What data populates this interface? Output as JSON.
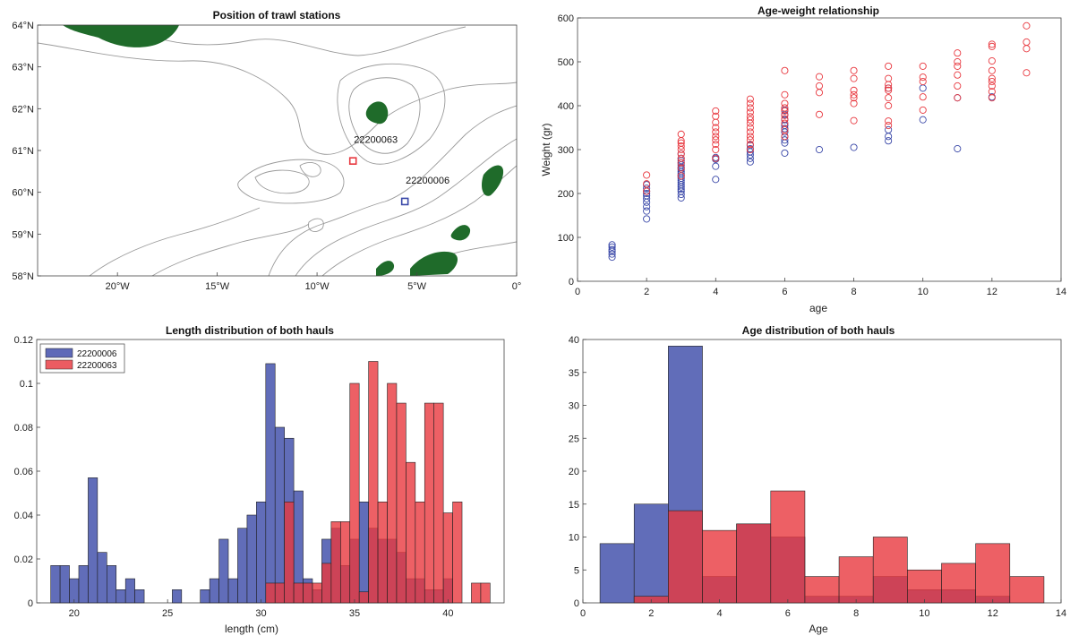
{
  "chart_data": [
    {
      "id": "map",
      "type": "map",
      "title": "Position of trawl stations",
      "x_ticks": [
        {
          "value": -20,
          "label": "20°W"
        },
        {
          "value": -15,
          "label": "15°W"
        },
        {
          "value": -10,
          "label": "10°W"
        },
        {
          "value": -5,
          "label": "5°W"
        },
        {
          "value": 0,
          "label": "0°"
        }
      ],
      "y_ticks": [
        {
          "value": 58,
          "label": "58°N"
        },
        {
          "value": 59,
          "label": "59°N"
        },
        {
          "value": 60,
          "label": "60°N"
        },
        {
          "value": 61,
          "label": "61°N"
        },
        {
          "value": 62,
          "label": "62°N"
        },
        {
          "value": 63,
          "label": "63°N"
        },
        {
          "value": 64,
          "label": "64°N"
        }
      ],
      "xlim": [
        -24,
        0
      ],
      "ylim": [
        58,
        64
      ],
      "stations": [
        {
          "id": "22200063",
          "lon": -8.2,
          "lat": 60.75,
          "color": "#e8383f"
        },
        {
          "id": "22200006",
          "lon": -5.6,
          "lat": 59.78,
          "color": "#3a48a8"
        }
      ],
      "land_color": "#1f6b2a"
    },
    {
      "id": "scatter",
      "type": "scatter",
      "title": "Age-weight relationship",
      "xlabel": "age",
      "ylabel": "Weight (gr)",
      "xlim": [
        0,
        14
      ],
      "ylim": [
        0,
        600
      ],
      "x_ticks": [
        0,
        2,
        4,
        6,
        8,
        10,
        12,
        14
      ],
      "y_ticks": [
        0,
        100,
        200,
        300,
        400,
        500,
        600
      ],
      "series": [
        {
          "color": "#3a48a8",
          "points": [
            [
              1,
              55
            ],
            [
              1,
              62
            ],
            [
              1,
              68
            ],
            [
              1,
              72
            ],
            [
              1,
              78
            ],
            [
              1,
              83
            ],
            [
              2,
              142
            ],
            [
              2,
              160
            ],
            [
              2,
              170
            ],
            [
              2,
              180
            ],
            [
              2,
              188
            ],
            [
              2,
              195
            ],
            [
              2,
              200
            ],
            [
              2,
              205
            ],
            [
              2,
              212
            ],
            [
              2,
              220
            ],
            [
              3,
              190
            ],
            [
              3,
              198
            ],
            [
              3,
              205
            ],
            [
              3,
              210
            ],
            [
              3,
              215
            ],
            [
              3,
              220
            ],
            [
              3,
              225
            ],
            [
              3,
              230
            ],
            [
              3,
              235
            ],
            [
              3,
              240
            ],
            [
              3,
              245
            ],
            [
              3,
              250
            ],
            [
              3,
              255
            ],
            [
              3,
              260
            ],
            [
              3,
              265
            ],
            [
              3,
              270
            ],
            [
              3,
              275
            ],
            [
              3,
              280
            ],
            [
              3,
              290
            ],
            [
              4,
              232
            ],
            [
              4,
              262
            ],
            [
              4,
              278
            ],
            [
              4,
              282
            ],
            [
              5,
              272
            ],
            [
              5,
              280
            ],
            [
              5,
              288
            ],
            [
              5,
              295
            ],
            [
              5,
              302
            ],
            [
              5,
              310
            ],
            [
              6,
              292
            ],
            [
              6,
              315
            ],
            [
              6,
              322
            ],
            [
              6,
              330
            ],
            [
              6,
              340
            ],
            [
              6,
              348
            ],
            [
              6,
              355
            ],
            [
              6,
              368
            ],
            [
              6,
              380
            ],
            [
              6,
              390
            ],
            [
              7,
              300
            ],
            [
              8,
              305
            ],
            [
              9,
              320
            ],
            [
              9,
              330
            ],
            [
              9,
              345
            ],
            [
              9,
              440
            ],
            [
              10,
              368
            ],
            [
              10,
              440
            ],
            [
              11,
              302
            ],
            [
              11,
              418
            ],
            [
              12,
              420
            ]
          ]
        },
        {
          "color": "#e8383f",
          "points": [
            [
              2,
              205
            ],
            [
              2,
              222
            ],
            [
              2,
              242
            ],
            [
              3,
              240
            ],
            [
              3,
              258
            ],
            [
              3,
              270
            ],
            [
              3,
              280
            ],
            [
              3,
              290
            ],
            [
              3,
              300
            ],
            [
              3,
              308
            ],
            [
              3,
              315
            ],
            [
              3,
              320
            ],
            [
              3,
              335
            ],
            [
              4,
              280
            ],
            [
              4,
              300
            ],
            [
              4,
              312
            ],
            [
              4,
              322
            ],
            [
              4,
              330
            ],
            [
              4,
              340
            ],
            [
              4,
              350
            ],
            [
              4,
              362
            ],
            [
              4,
              376
            ],
            [
              4,
              388
            ],
            [
              5,
              300
            ],
            [
              5,
              312
            ],
            [
              5,
              322
            ],
            [
              5,
              330
            ],
            [
              5,
              340
            ],
            [
              5,
              350
            ],
            [
              5,
              360
            ],
            [
              5,
              368
            ],
            [
              5,
              375
            ],
            [
              5,
              385
            ],
            [
              5,
              395
            ],
            [
              5,
              405
            ],
            [
              5,
              415
            ],
            [
              6,
              330
            ],
            [
              6,
              345
            ],
            [
              6,
              360
            ],
            [
              6,
              370
            ],
            [
              6,
              378
            ],
            [
              6,
              388
            ],
            [
              6,
              395
            ],
            [
              6,
              405
            ],
            [
              6,
              425
            ],
            [
              6,
              480
            ],
            [
              7,
              380
            ],
            [
              7,
              430
            ],
            [
              7,
              445
            ],
            [
              7,
              466
            ],
            [
              8,
              366
            ],
            [
              8,
              405
            ],
            [
              8,
              418
            ],
            [
              8,
              425
            ],
            [
              8,
              435
            ],
            [
              8,
              462
            ],
            [
              8,
              480
            ],
            [
              9,
              355
            ],
            [
              9,
              365
            ],
            [
              9,
              400
            ],
            [
              9,
              418
            ],
            [
              9,
              435
            ],
            [
              9,
              440
            ],
            [
              9,
              448
            ],
            [
              9,
              462
            ],
            [
              9,
              490
            ],
            [
              10,
              390
            ],
            [
              10,
              420
            ],
            [
              10,
              455
            ],
            [
              10,
              465
            ],
            [
              10,
              490
            ],
            [
              11,
              418
            ],
            [
              11,
              445
            ],
            [
              11,
              470
            ],
            [
              11,
              490
            ],
            [
              11,
              500
            ],
            [
              11,
              520
            ],
            [
              12,
              418
            ],
            [
              12,
              432
            ],
            [
              12,
              445
            ],
            [
              12,
              455
            ],
            [
              12,
              462
            ],
            [
              12,
              480
            ],
            [
              12,
              502
            ],
            [
              12,
              535
            ],
            [
              12,
              540
            ],
            [
              13,
              475
            ],
            [
              13,
              530
            ],
            [
              13,
              545
            ],
            [
              13,
              582
            ]
          ]
        }
      ]
    },
    {
      "id": "length-hist",
      "type": "bar",
      "title": "Length distribution of both hauls",
      "xlabel": "length (cm)",
      "ylabel": "",
      "xlim": [
        18,
        43
      ],
      "ylim": [
        0,
        0.12
      ],
      "x_ticks": [
        20,
        25,
        30,
        35,
        40
      ],
      "y_ticks": [
        0,
        0.02,
        0.04,
        0.06,
        0.08,
        0.1,
        0.12
      ],
      "bin_width": 0.5,
      "legend": [
        {
          "name": "22200006",
          "color": "#3a48a8"
        },
        {
          "name": "22200063",
          "color": "#e8383f"
        }
      ],
      "series": [
        {
          "name": "22200006",
          "color": "#3a48a8",
          "bins": [
            [
              19,
              0.017
            ],
            [
              19.5,
              0.017
            ],
            [
              20,
              0.011
            ],
            [
              20.5,
              0.017
            ],
            [
              21,
              0.057
            ],
            [
              21.5,
              0.023
            ],
            [
              22,
              0.017
            ],
            [
              22.5,
              0.006
            ],
            [
              23,
              0.011
            ],
            [
              23.5,
              0.006
            ],
            [
              25.5,
              0.006
            ],
            [
              27,
              0.006
            ],
            [
              27.5,
              0.011
            ],
            [
              28,
              0.029
            ],
            [
              28.5,
              0.011
            ],
            [
              29,
              0.034
            ],
            [
              29.5,
              0.04
            ],
            [
              30,
              0.046
            ],
            [
              30.5,
              0.109
            ],
            [
              31,
              0.08
            ],
            [
              31.5,
              0.075
            ],
            [
              32,
              0.051
            ],
            [
              32.5,
              0.011
            ],
            [
              33,
              0.006
            ],
            [
              33.5,
              0.029
            ],
            [
              34,
              0.034
            ],
            [
              34.5,
              0.017
            ],
            [
              35,
              0.029
            ],
            [
              35.5,
              0.046
            ],
            [
              36,
              0.034
            ],
            [
              36.5,
              0.029
            ],
            [
              37,
              0.029
            ],
            [
              37.5,
              0.023
            ],
            [
              38,
              0.011
            ],
            [
              38.5,
              0.011
            ],
            [
              39,
              0.006
            ],
            [
              39.5,
              0.006
            ],
            [
              40,
              0.011
            ]
          ]
        },
        {
          "name": "22200063",
          "color": "#e8383f",
          "bins": [
            [
              30.5,
              0.009
            ],
            [
              31,
              0.009
            ],
            [
              31.5,
              0.046
            ],
            [
              32,
              0.009
            ],
            [
              32.5,
              0.009
            ],
            [
              33,
              0.009
            ],
            [
              33.5,
              0.018
            ],
            [
              34,
              0.037
            ],
            [
              34.5,
              0.037
            ],
            [
              35,
              0.1
            ],
            [
              35.5,
              0.005
            ],
            [
              36,
              0.11
            ],
            [
              36.5,
              0.046
            ],
            [
              37,
              0.1
            ],
            [
              37.5,
              0.091
            ],
            [
              38,
              0.064
            ],
            [
              38.5,
              0.046
            ],
            [
              39,
              0.091
            ],
            [
              39.5,
              0.091
            ],
            [
              40,
              0.041
            ],
            [
              40.5,
              0.046
            ],
            [
              41.5,
              0.009
            ],
            [
              42,
              0.009
            ]
          ]
        }
      ]
    },
    {
      "id": "age-hist",
      "type": "bar",
      "title": "Age distribution of both hauls",
      "xlabel": "Age",
      "ylabel": "",
      "xlim": [
        0,
        14
      ],
      "ylim": [
        0,
        40
      ],
      "x_ticks": [
        0,
        2,
        4,
        6,
        8,
        10,
        12,
        14
      ],
      "y_ticks": [
        0,
        5,
        10,
        15,
        20,
        25,
        30,
        35,
        40
      ],
      "bin_width": 1,
      "series": [
        {
          "name": "22200006",
          "color": "#3a48a8",
          "bins": [
            [
              1,
              9
            ],
            [
              2,
              15
            ],
            [
              3,
              39
            ],
            [
              4,
              4
            ],
            [
              5,
              12
            ],
            [
              6,
              10
            ],
            [
              7,
              1
            ],
            [
              8,
              1
            ],
            [
              9,
              4
            ],
            [
              10,
              2
            ],
            [
              11,
              2
            ],
            [
              12,
              1
            ]
          ]
        },
        {
          "name": "22200063",
          "color": "#e8383f",
          "bins": [
            [
              2,
              1
            ],
            [
              3,
              14
            ],
            [
              4,
              11
            ],
            [
              5,
              12
            ],
            [
              6,
              17
            ],
            [
              7,
              4
            ],
            [
              8,
              7
            ],
            [
              9,
              10
            ],
            [
              10,
              5
            ],
            [
              11,
              6
            ],
            [
              12,
              9
            ],
            [
              13,
              4
            ]
          ]
        }
      ]
    }
  ]
}
